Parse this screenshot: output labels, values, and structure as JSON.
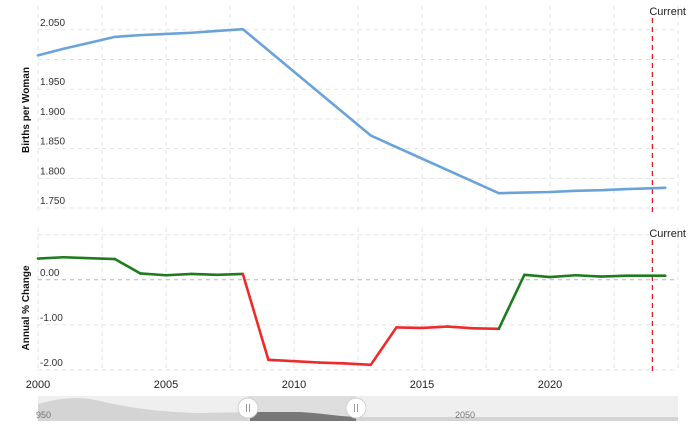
{
  "chart_data": [
    {
      "type": "line",
      "ylabel": "Births per Woman",
      "ylim": [
        1.74,
        2.09
      ],
      "yticks": [
        "2.050",
        "1.950",
        "1.900",
        "1.850",
        "1.800",
        "1.750"
      ],
      "marker_label": "Current",
      "series": [
        {
          "color": "#6aa3d9",
          "x": [
            2000,
            2001,
            2002,
            2003,
            2004,
            2005,
            2006,
            2007,
            2008,
            2013,
            2018,
            2019,
            2020,
            2021,
            2022,
            2023,
            2024.5
          ],
          "values": [
            2.007,
            2.018,
            2.028,
            2.038,
            2.041,
            2.043,
            2.045,
            2.048,
            2.051,
            1.872,
            1.775,
            1.776,
            1.777,
            1.779,
            1.78,
            1.782,
            1.784
          ]
        }
      ]
    },
    {
      "type": "line",
      "ylabel": "Annual % Change",
      "ylim": [
        -2.05,
        1.15
      ],
      "yticks": [
        "0.00",
        "-1.00",
        "-2.00"
      ],
      "marker_label": "Current",
      "colors": {
        "positive": "#1e7b1e",
        "negative": "#ee2b2b"
      },
      "series": [
        {
          "x": [
            2000,
            2001,
            2002,
            2003,
            2004,
            2005,
            2006,
            2007,
            2008,
            2009,
            2010,
            2011,
            2012,
            2013,
            2014,
            2015,
            2016,
            2017,
            2018,
            2019,
            2020,
            2021,
            2022,
            2023,
            2024.5
          ],
          "values": [
            0.47,
            0.5,
            0.48,
            0.46,
            0.14,
            0.1,
            0.13,
            0.11,
            0.13,
            -1.78,
            -1.81,
            -1.84,
            -1.86,
            -1.89,
            -1.06,
            -1.07,
            -1.04,
            -1.08,
            -1.09,
            0.11,
            0.06,
            0.1,
            0.07,
            0.09,
            0.09
          ]
        }
      ]
    }
  ],
  "x_axis": {
    "ticks": [
      2000,
      2005,
      2010,
      2015,
      2020
    ],
    "current_x": 2024.0
  },
  "navigator": {
    "labels": [
      "950",
      "2050"
    ]
  }
}
